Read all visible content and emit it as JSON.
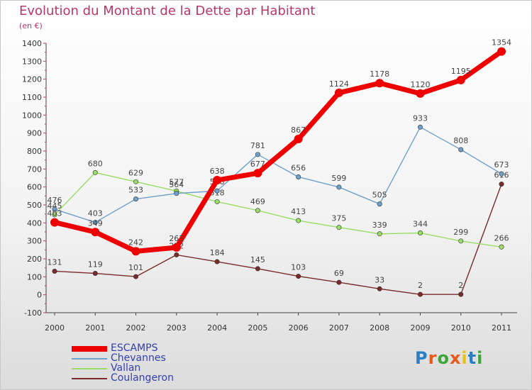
{
  "title": "Evolution du Montant de la Dette par Habitant",
  "subtitle": "(en €)",
  "brand": {
    "letters": [
      "P",
      "r",
      "o",
      "x",
      "i",
      "t",
      "i"
    ],
    "colors": [
      "#2a7fc4",
      "#e8591a",
      "#3fa63a",
      "#e8591a",
      "#e8c21a",
      "#2a7fc4",
      "#3fa63a"
    ]
  },
  "chart_data": {
    "type": "line",
    "x": [
      "2000",
      "2001",
      "2002",
      "2003",
      "2004",
      "2005",
      "2006",
      "2007",
      "2008",
      "2009",
      "2010",
      "2011"
    ],
    "ylim": [
      -100,
      1400
    ],
    "yticks": [
      "-100",
      "0",
      "100",
      "200",
      "300",
      "400",
      "500",
      "600",
      "700",
      "800",
      "900",
      "1000",
      "1100",
      "1200",
      "1300",
      "1400"
    ],
    "grid": false,
    "legend_position": "bottom-left",
    "series": [
      {
        "name": "ESCAMPS",
        "color": "#ee0000",
        "values": [
          403,
          349,
          242,
          263,
          638,
          677,
          867,
          1124,
          1178,
          1120,
          1195,
          1354
        ],
        "labels": [
          "403",
          "349",
          "242",
          "263",
          "638",
          "677",
          "867",
          "1124",
          "1178",
          "1120",
          "1195",
          "1354"
        ]
      },
      {
        "name": "Chevannes",
        "color": "#6fa0cc",
        "values": [
          476,
          403,
          533,
          564,
          578,
          781,
          656,
          599,
          505,
          933,
          808,
          673
        ],
        "labels": [
          "476",
          "403",
          "533",
          "564",
          "578",
          "781",
          "656",
          "599",
          "505",
          "933",
          "808",
          "673"
        ]
      },
      {
        "name": "Vallan",
        "color": "#99dd66",
        "values": [
          445,
          680,
          629,
          577,
          518,
          469,
          413,
          375,
          339,
          344,
          299,
          266
        ],
        "labels": [
          "445",
          "680",
          "629",
          "577",
          "518",
          "469",
          "413",
          "375",
          "339",
          "344",
          "299",
          "266"
        ]
      },
      {
        "name": "Coulangeron",
        "color": "#7a2a2a",
        "values": [
          131,
          119,
          101,
          222,
          184,
          145,
          103,
          69,
          33,
          2,
          2,
          616
        ],
        "labels": [
          "131",
          "119",
          "101",
          "222",
          "184",
          "145",
          "103",
          "69",
          "33",
          "2",
          "2",
          "616"
        ]
      }
    ]
  }
}
